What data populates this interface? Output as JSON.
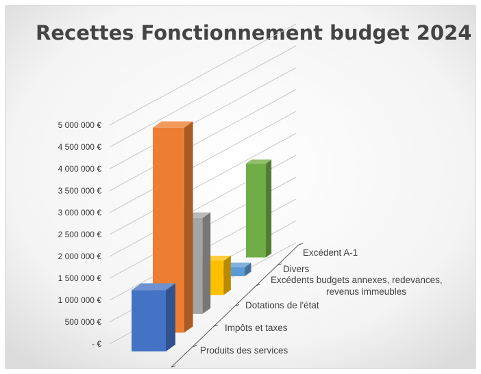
{
  "chart_data": {
    "type": "bar",
    "title": "Recettes Fonctionnement budget 2024",
    "categories": [
      "Produits des services",
      "Impôts et taxes",
      "Dotations de l'état",
      "Excédents budgets annexes, redevances, revenus immeubles",
      "Divers",
      "Excédent     A-1"
    ],
    "category_label_lines": [
      [
        "Produits des services"
      ],
      [
        "Impôts et taxes"
      ],
      [
        "Dotations de l'état"
      ],
      [
        "Excédents budgets annexes, redevances,",
        "revenus immeubles"
      ],
      [
        "Divers"
      ],
      [
        "Excédent     A-1"
      ]
    ],
    "values": [
      1400000,
      4900000,
      2400000,
      900000,
      250000,
      2750000
    ],
    "colors": [
      "#4472C4",
      "#ED7D31",
      "#A5A5A5",
      "#FFC000",
      "#5B9BD5",
      "#70AD47"
    ],
    "ylim": [
      0,
      5000000
    ],
    "yticks": [
      {
        "value": 0,
        "label": "-   €"
      },
      {
        "value": 500000,
        "label": "500 000 €"
      },
      {
        "value": 1000000,
        "label": "1 000 000 €"
      },
      {
        "value": 1500000,
        "label": "1 500 000 €"
      },
      {
        "value": 2000000,
        "label": "2 000 000 €"
      },
      {
        "value": 2500000,
        "label": "2 500 000 €"
      },
      {
        "value": 3000000,
        "label": "3 000 000 €"
      },
      {
        "value": 3500000,
        "label": "3 500 000 €"
      },
      {
        "value": 4000000,
        "label": "4 000 000 €"
      },
      {
        "value": 4500000,
        "label": "4 500 000 €"
      },
      {
        "value": 5000000,
        "label": "5 000 000 €"
      }
    ],
    "grid": true,
    "legend": "none",
    "view": "3d-columns"
  }
}
